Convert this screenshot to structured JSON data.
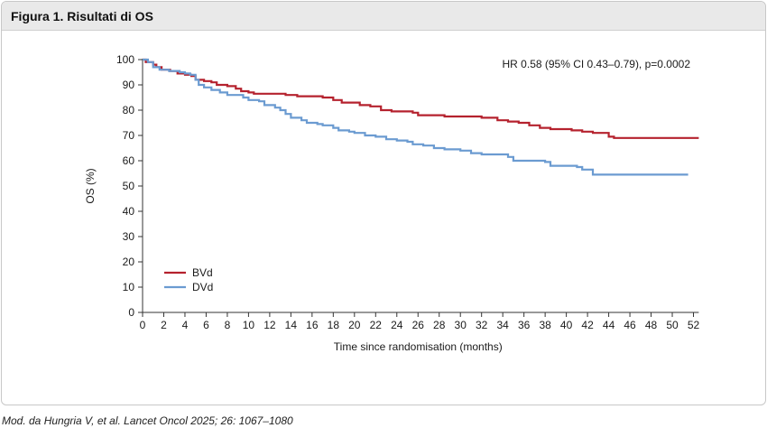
{
  "figure": {
    "title": "Figura 1. Risultati di OS",
    "caption": "Mod. da Hungria V, et al. Lancet Oncol 2025; 26: 1067–1080"
  },
  "chart_data": {
    "type": "line",
    "step": true,
    "annotation": "HR 0.58 (95% CI 0.43–0.79), p=0.0002",
    "xlabel": "Time since randomisation (months)",
    "ylabel": "OS (%)",
    "xlim": [
      0,
      52
    ],
    "ylim": [
      0,
      100
    ],
    "x_ticks": [
      0,
      2,
      4,
      6,
      8,
      10,
      12,
      14,
      16,
      18,
      20,
      22,
      24,
      26,
      28,
      30,
      32,
      34,
      36,
      38,
      40,
      42,
      44,
      46,
      48,
      50,
      52
    ],
    "y_ticks": [
      0,
      10,
      20,
      30,
      40,
      50,
      60,
      70,
      80,
      90,
      100
    ],
    "grid": false,
    "legend_position": "bottom-left",
    "series": [
      {
        "name": "BVd",
        "color": "#b5222e",
        "points": [
          [
            0,
            100
          ],
          [
            0.3,
            99
          ],
          [
            1,
            98
          ],
          [
            1.3,
            97
          ],
          [
            1.8,
            96
          ],
          [
            2.6,
            95.5
          ],
          [
            3.3,
            94.5
          ],
          [
            4,
            94
          ],
          [
            4.6,
            93.5
          ],
          [
            5,
            92
          ],
          [
            5.8,
            91.5
          ],
          [
            6.5,
            91
          ],
          [
            7,
            90
          ],
          [
            8,
            89.5
          ],
          [
            8.8,
            88.5
          ],
          [
            9.3,
            87.5
          ],
          [
            10,
            87
          ],
          [
            10.5,
            86.5
          ],
          [
            13.5,
            86
          ],
          [
            14.6,
            85.5
          ],
          [
            17,
            85
          ],
          [
            18,
            84
          ],
          [
            18.8,
            83
          ],
          [
            20.5,
            82
          ],
          [
            21.5,
            81.5
          ],
          [
            22.5,
            80
          ],
          [
            23.5,
            79.5
          ],
          [
            25.5,
            79
          ],
          [
            26,
            78
          ],
          [
            28.5,
            77.5
          ],
          [
            32,
            77
          ],
          [
            33.5,
            76
          ],
          [
            34.5,
            75.5
          ],
          [
            35.5,
            75
          ],
          [
            36.5,
            74
          ],
          [
            37.5,
            73
          ],
          [
            38.5,
            72.5
          ],
          [
            40.5,
            72
          ],
          [
            41.5,
            71.5
          ],
          [
            42.5,
            71
          ],
          [
            44,
            69.5
          ],
          [
            44.5,
            69
          ],
          [
            52.5,
            69
          ]
        ]
      },
      {
        "name": "DVd",
        "color": "#6b9bd1",
        "points": [
          [
            0,
            100
          ],
          [
            0.5,
            99
          ],
          [
            1,
            97
          ],
          [
            1.6,
            96
          ],
          [
            2.5,
            95.5
          ],
          [
            3.5,
            95
          ],
          [
            4,
            94.5
          ],
          [
            4.5,
            94
          ],
          [
            5,
            92
          ],
          [
            5.3,
            90
          ],
          [
            5.8,
            89
          ],
          [
            6.5,
            88
          ],
          [
            7.3,
            87
          ],
          [
            8,
            86
          ],
          [
            9.5,
            85
          ],
          [
            10,
            84
          ],
          [
            11,
            83.5
          ],
          [
            11.5,
            82
          ],
          [
            12.5,
            81
          ],
          [
            13,
            80
          ],
          [
            13.5,
            78.5
          ],
          [
            14,
            77
          ],
          [
            15,
            76
          ],
          [
            15.5,
            75
          ],
          [
            16.5,
            74.5
          ],
          [
            17,
            74
          ],
          [
            18,
            73
          ],
          [
            18.5,
            72
          ],
          [
            19.5,
            71.5
          ],
          [
            20,
            71
          ],
          [
            21,
            70
          ],
          [
            22,
            69.5
          ],
          [
            23,
            68.5
          ],
          [
            24,
            68
          ],
          [
            25,
            67.5
          ],
          [
            25.5,
            66.5
          ],
          [
            26.5,
            66
          ],
          [
            27.5,
            65
          ],
          [
            28.5,
            64.5
          ],
          [
            30,
            64
          ],
          [
            31,
            63
          ],
          [
            32,
            62.5
          ],
          [
            34.5,
            61.5
          ],
          [
            35,
            60
          ],
          [
            38,
            59.5
          ],
          [
            38.5,
            58
          ],
          [
            41,
            57.5
          ],
          [
            41.5,
            56.5
          ],
          [
            42.5,
            54.5
          ],
          [
            51.5,
            54.5
          ]
        ]
      }
    ]
  }
}
